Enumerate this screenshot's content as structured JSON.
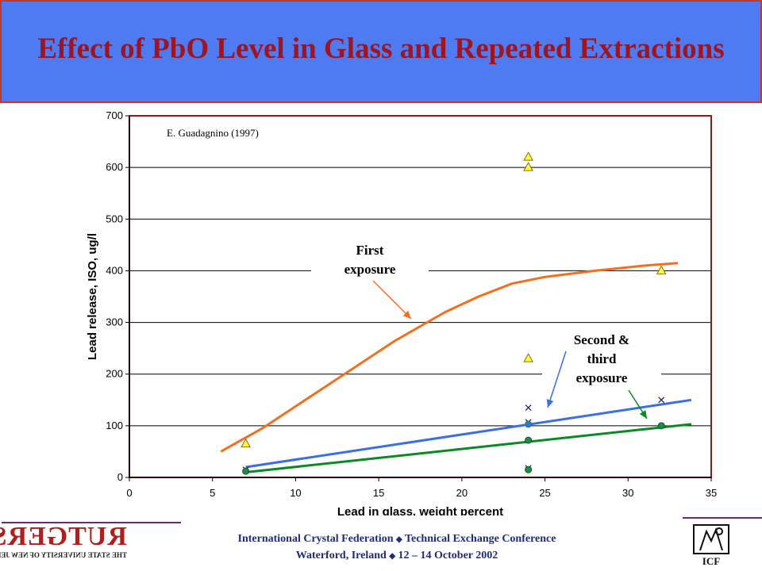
{
  "slide": {
    "title": "Effect of PbO Level in Glass and Repeated Extractions"
  },
  "footer": {
    "line1_left": "International Crystal Federation",
    "line1_right": "Technical Exchange Conference",
    "line2_left": "Waterford, Ireland",
    "line2_right": "12 – 14 October 2002",
    "separator": "◆"
  },
  "logos": {
    "left_word": "RUTGERS",
    "left_sub": "THE STATE UNIVERSITY OF NEW JERSEY",
    "right_word": "ICF"
  },
  "colors": {
    "banner": "#4f7bf2",
    "title": "#a1131f",
    "first_exposure_curve": "#f07020",
    "blue_trend": "#3a6fe0",
    "green_trend": "#0a8a22",
    "triangle_fill": "#ffff40",
    "plot_border": "#8b1a1a"
  },
  "chart_data": {
    "type": "scatter",
    "xlabel": "Lead in glass, weight percent",
    "ylabel": "Lead release, ISO, ug/l",
    "xlim": [
      0,
      35
    ],
    "ylim": [
      0,
      700
    ],
    "xticks": [
      0,
      5,
      10,
      15,
      20,
      25,
      30,
      35
    ],
    "yticks": [
      0,
      100,
      200,
      300,
      400,
      500,
      600,
      700
    ],
    "grid": "horizontal",
    "source_annotation": "E. Guadagnino (1997)",
    "annotations": [
      {
        "text": "First exposure",
        "lines": [
          "First",
          "exposure"
        ]
      },
      {
        "text": "Second & third exposure",
        "lines": [
          "Second &",
          "third",
          "exposure"
        ]
      }
    ],
    "series": [
      {
        "marker": "triangle",
        "color": "#ffff40",
        "points": [
          [
            7,
            65
          ],
          [
            24,
            620
          ],
          [
            24,
            600
          ],
          [
            24,
            230
          ],
          [
            32,
            400
          ]
        ]
      },
      {
        "marker": "cross",
        "color": "#1a1a66",
        "points": [
          [
            7,
            15
          ],
          [
            24,
            135
          ],
          [
            24,
            107
          ],
          [
            24,
            18
          ],
          [
            32,
            150
          ]
        ]
      },
      {
        "marker": "circle-blue",
        "color": "#3a6fe0",
        "points": [
          [
            24,
            103
          ]
        ]
      },
      {
        "marker": "circle",
        "color": "#1f8a4a",
        "points": [
          [
            7,
            12
          ],
          [
            24,
            72
          ],
          [
            24,
            15
          ],
          [
            32,
            100
          ]
        ]
      }
    ],
    "trendlines": [
      {
        "color": "#f07020",
        "points": [
          [
            5.5,
            50
          ],
          [
            8,
            95
          ],
          [
            12,
            180
          ],
          [
            16,
            265
          ],
          [
            19,
            320
          ],
          [
            21,
            350
          ],
          [
            23,
            375
          ],
          [
            25,
            388
          ],
          [
            28,
            400
          ],
          [
            31,
            410
          ],
          [
            33,
            415
          ]
        ]
      },
      {
        "color": "#3a6fe0",
        "points": [
          [
            7,
            20
          ],
          [
            33.8,
            150
          ]
        ]
      },
      {
        "color": "#0a8a22",
        "points": [
          [
            7,
            10
          ],
          [
            33.8,
            103
          ]
        ]
      }
    ]
  }
}
